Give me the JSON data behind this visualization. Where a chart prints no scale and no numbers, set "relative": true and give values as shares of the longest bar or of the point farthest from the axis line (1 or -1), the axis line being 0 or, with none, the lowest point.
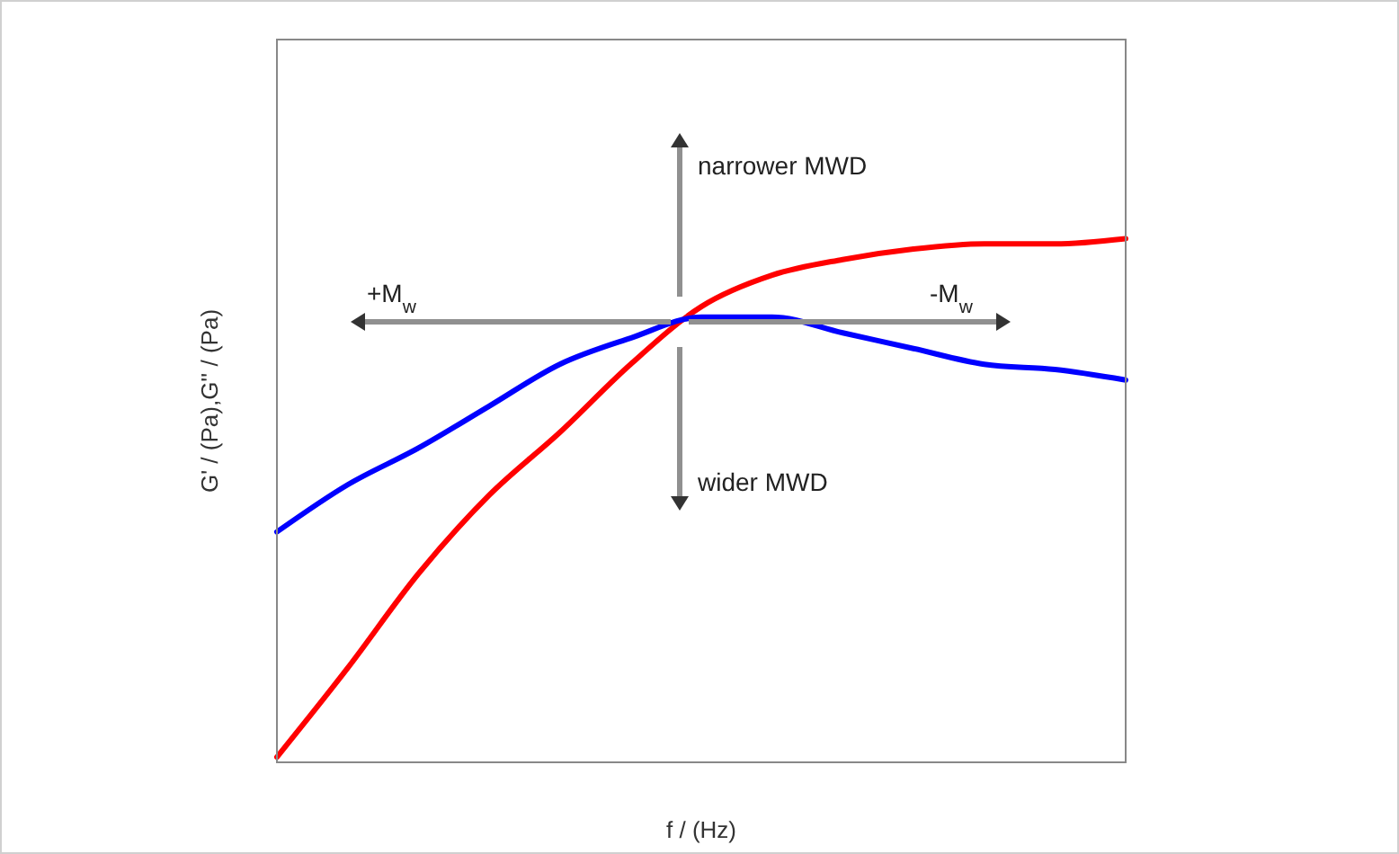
{
  "chart_data": {
    "type": "line",
    "relative": true,
    "xlabel": "f / (Hz)",
    "ylabel": "G' / (Pa),G'' / (Pa)",
    "categories": [
      null,
      null,
      null,
      null,
      null,
      null,
      null,
      null,
      null,
      null,
      null,
      null,
      null
    ],
    "series": [
      {
        "color": "#ff0000",
        "values": [
          0.01,
          0.18,
          0.36,
          0.51,
          0.63,
          0.76,
          0.87,
          0.93,
          0.96,
          0.98,
          0.99,
          0.99,
          1.0
        ]
      },
      {
        "color": "#0000ff",
        "values": [
          0.44,
          0.53,
          0.6,
          0.68,
          0.76,
          0.81,
          0.85,
          0.85,
          0.82,
          0.79,
          0.76,
          0.75,
          0.73
        ]
      }
    ],
    "annotations": [
      "narrower MWD",
      "wider MWD",
      "+M$_{w}$",
      "-M$_{w}$"
    ],
    "marker": "none",
    "line_style": "solid"
  }
}
